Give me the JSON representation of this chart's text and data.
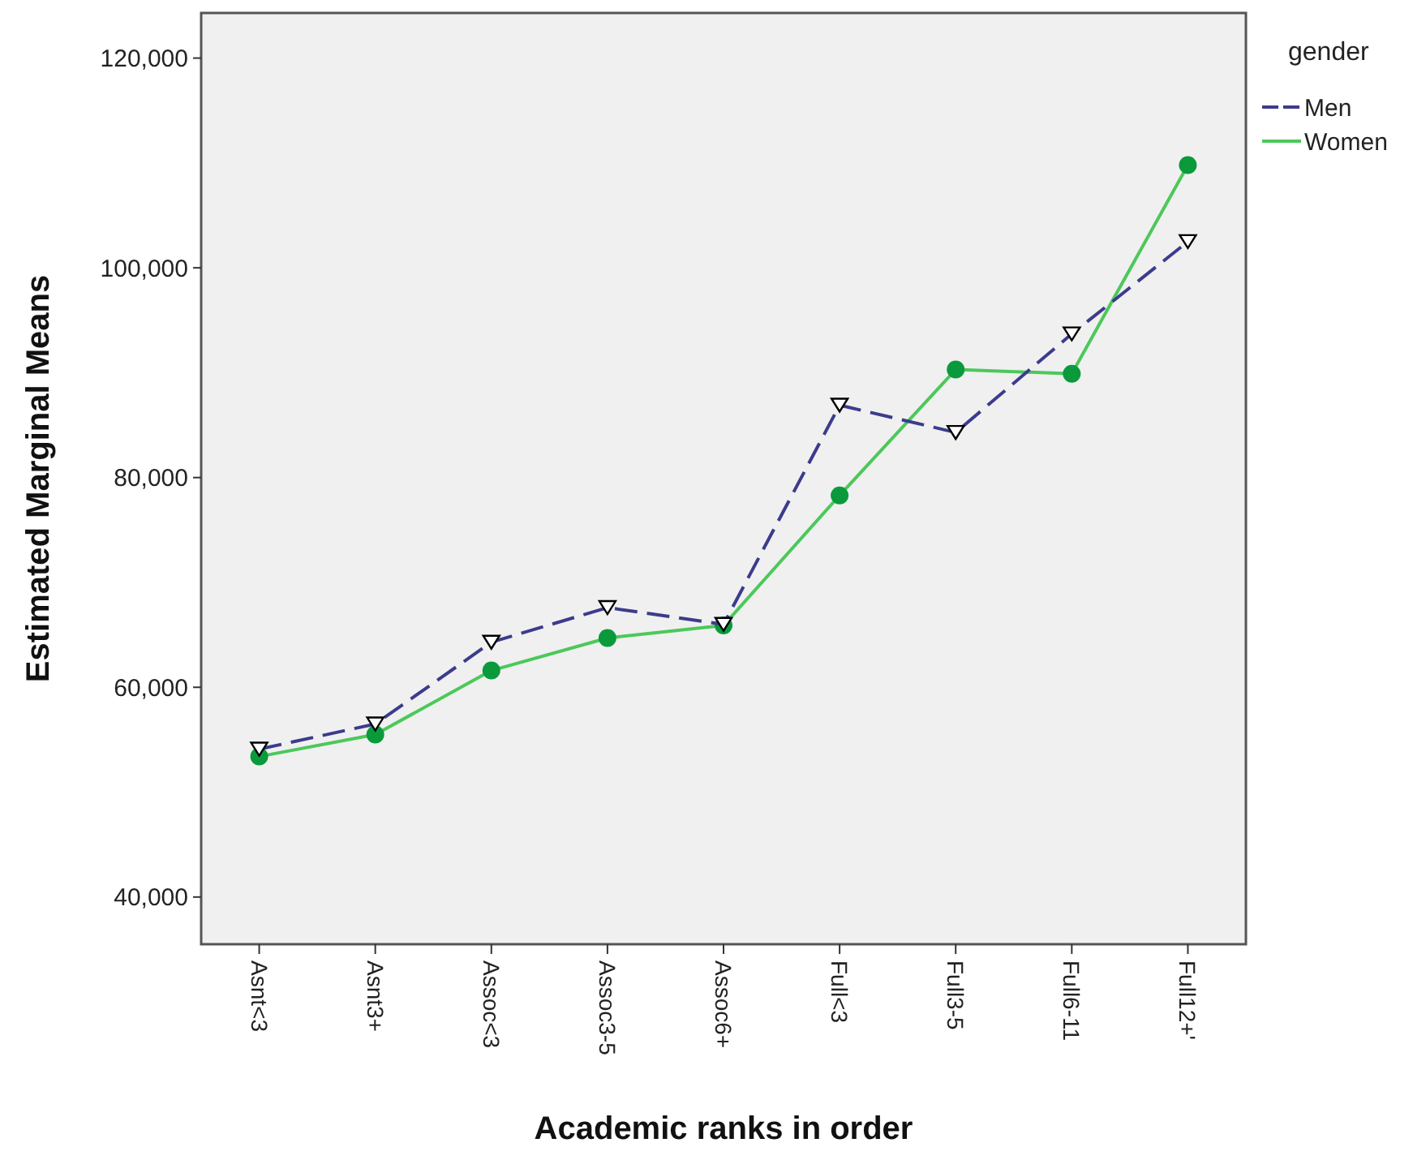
{
  "chart_data": {
    "type": "line",
    "xlabel": "Academic ranks in order",
    "ylabel": "Estimated Marginal Means",
    "legend_title": "gender",
    "legend": "top right",
    "grid": false,
    "categories": [
      "Asnt<3",
      "Asnt3+",
      "Assoc<3",
      "Assoc3-5",
      "Assoc6+",
      "Full<3",
      "Full3-5",
      "Full6-11",
      "Full12+'"
    ],
    "ylim": [
      35500,
      124300
    ],
    "yticks": [
      {
        "value": 40000,
        "label": "40,000"
      },
      {
        "value": 60000,
        "label": "60,000"
      },
      {
        "value": 80000,
        "label": "80,000"
      },
      {
        "value": 100000,
        "label": "100,000"
      },
      {
        "value": 120000,
        "label": "120,000"
      }
    ],
    "series": [
      {
        "name": "Men",
        "color": "#3c3c8c",
        "line_style": "dashed",
        "marker": "triangle",
        "values": [
          54100,
          56500,
          64300,
          67600,
          66000,
          86900,
          84300,
          93700,
          102500
        ]
      },
      {
        "name": "Women",
        "color": "#4cc85a",
        "line_style": "solid",
        "marker": "circle",
        "values": [
          53400,
          55500,
          61600,
          64700,
          65900,
          78300,
          90300,
          89900,
          109800
        ]
      }
    ]
  }
}
